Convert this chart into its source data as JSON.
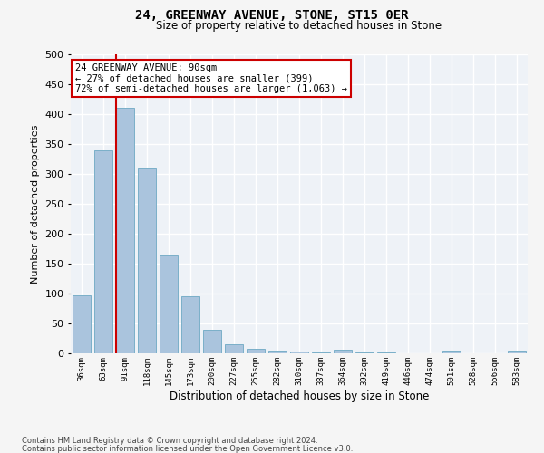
{
  "title": "24, GREENWAY AVENUE, STONE, ST15 0ER",
  "subtitle": "Size of property relative to detached houses in Stone",
  "xlabel": "Distribution of detached houses by size in Stone",
  "ylabel": "Number of detached properties",
  "categories": [
    "36sqm",
    "63sqm",
    "91sqm",
    "118sqm",
    "145sqm",
    "173sqm",
    "200sqm",
    "227sqm",
    "255sqm",
    "282sqm",
    "310sqm",
    "337sqm",
    "364sqm",
    "392sqm",
    "419sqm",
    "446sqm",
    "474sqm",
    "501sqm",
    "528sqm",
    "556sqm",
    "583sqm"
  ],
  "values": [
    97,
    340,
    410,
    310,
    163,
    95,
    40,
    15,
    8,
    4,
    3,
    2,
    6,
    1,
    1,
    0,
    0,
    4,
    0,
    0,
    4
  ],
  "bar_color": "#aac4dd",
  "bar_edge_color": "#7aafc8",
  "highlight_line_color": "#cc0000",
  "annotation_text": "24 GREENWAY AVENUE: 90sqm\n← 27% of detached houses are smaller (399)\n72% of semi-detached houses are larger (1,063) →",
  "annotation_box_color": "#ffffff",
  "annotation_box_edge_color": "#cc0000",
  "ylim": [
    0,
    500
  ],
  "yticks": [
    0,
    50,
    100,
    150,
    200,
    250,
    300,
    350,
    400,
    450,
    500
  ],
  "background_color": "#eef2f7",
  "grid_color": "#ffffff",
  "fig_bg_color": "#f5f5f5",
  "footer1": "Contains HM Land Registry data © Crown copyright and database right 2024.",
  "footer2": "Contains public sector information licensed under the Open Government Licence v3.0."
}
